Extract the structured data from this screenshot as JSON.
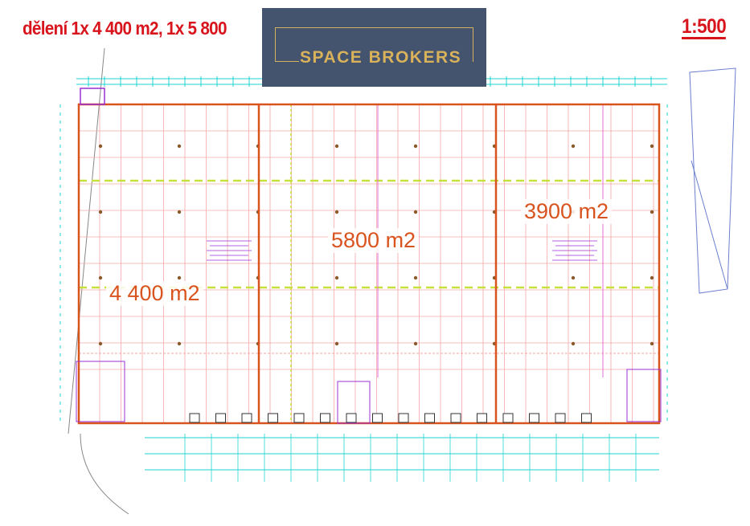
{
  "header": {
    "title": "dělení 1x 4 400 m2, 1x 5 800",
    "scale": "1:500"
  },
  "watermark": {
    "logo_text": "SPACE BROKERS",
    "background_color": "#44546f",
    "accent_color": "#d4b15a"
  },
  "plan": {
    "units": [
      {
        "label": "4 400 m2"
      },
      {
        "label": "5800 m2"
      },
      {
        "label": "3900 m2"
      }
    ],
    "colors": {
      "walls": "#d9531e",
      "grid": "#f4a6a6",
      "dimensions": "#22d3d3",
      "axis_dashed": "#c8e03a",
      "annotations": "#9b2fd6",
      "text": "#d9531e"
    }
  }
}
